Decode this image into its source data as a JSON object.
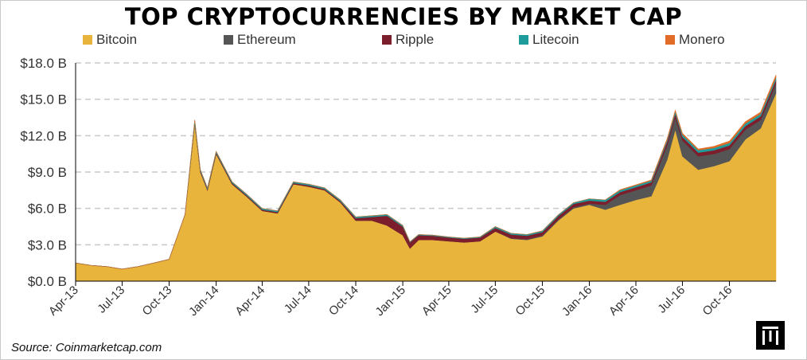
{
  "chart_data": {
    "type": "area",
    "title": "TOP CRYPTOCURRENCIES BY MARKET CAP",
    "xlabel": "",
    "ylabel": "",
    "ylim": [
      0,
      18
    ],
    "y_unit": "billion USD",
    "y_ticks": [
      "$0.0 B",
      "$3.0 B",
      "$6.0 B",
      "$9.0 B",
      "$12.0 B",
      "$15.0 B",
      "$18.0 B"
    ],
    "y_tick_values": [
      0,
      3,
      6,
      9,
      12,
      15,
      18
    ],
    "x_ticks": [
      "Apr-13",
      "Jul-13",
      "Oct-13",
      "Jan-14",
      "Apr-14",
      "Jul-14",
      "Oct-14",
      "Jan-15",
      "Apr-15",
      "Jul-15",
      "Oct-15",
      "Jan-16",
      "Apr-16",
      "Jul-16",
      "Oct-16"
    ],
    "x_tick_values": [
      "2013-04-01",
      "2013-07-01",
      "2013-10-01",
      "2014-01-01",
      "2014-04-01",
      "2014-07-01",
      "2014-10-01",
      "2015-01-01",
      "2015-04-01",
      "2015-07-01",
      "2015-10-01",
      "2016-01-01",
      "2016-04-01",
      "2016-07-01",
      "2016-10-01"
    ],
    "xlim": [
      "2013-04-01",
      "2016-12-31"
    ],
    "stacked": true,
    "grid": "horizontal dashed",
    "legend_position": "top",
    "x": [
      "2013-04-01",
      "2013-05-01",
      "2013-06-01",
      "2013-07-01",
      "2013-08-01",
      "2013-09-01",
      "2013-10-01",
      "2013-11-01",
      "2013-11-20",
      "2013-12-01",
      "2013-12-15",
      "2014-01-01",
      "2014-02-01",
      "2014-03-01",
      "2014-04-01",
      "2014-05-01",
      "2014-06-01",
      "2014-07-01",
      "2014-08-01",
      "2014-09-01",
      "2014-10-01",
      "2014-11-01",
      "2014-12-01",
      "2015-01-01",
      "2015-01-15",
      "2015-02-01",
      "2015-03-01",
      "2015-04-01",
      "2015-05-01",
      "2015-06-01",
      "2015-07-01",
      "2015-08-01",
      "2015-09-01",
      "2015-10-01",
      "2015-11-01",
      "2015-12-01",
      "2016-01-01",
      "2016-02-01",
      "2016-03-01",
      "2016-04-01",
      "2016-05-01",
      "2016-06-01",
      "2016-06-17",
      "2016-07-01",
      "2016-08-01",
      "2016-09-01",
      "2016-10-01",
      "2016-11-01",
      "2016-12-01",
      "2016-12-31"
    ],
    "series": [
      {
        "name": "Bitcoin",
        "color": "#e8b43c",
        "values": [
          1.5,
          1.3,
          1.2,
          1.0,
          1.2,
          1.5,
          1.8,
          5.5,
          13.0,
          9.0,
          7.5,
          10.5,
          8.0,
          7.0,
          5.8,
          5.6,
          8.0,
          7.8,
          7.5,
          6.5,
          5.0,
          5.0,
          4.6,
          3.8,
          2.7,
          3.4,
          3.4,
          3.3,
          3.2,
          3.3,
          4.1,
          3.5,
          3.4,
          3.7,
          5.0,
          6.0,
          6.3,
          5.9,
          6.3,
          6.7,
          7.0,
          10.0,
          12.5,
          10.3,
          9.2,
          9.5,
          9.9,
          11.7,
          12.6,
          15.5
        ]
      },
      {
        "name": "Ethereum",
        "color": "#555555",
        "values": [
          0,
          0,
          0,
          0,
          0,
          0,
          0,
          0,
          0,
          0,
          0,
          0,
          0,
          0,
          0,
          0,
          0,
          0,
          0,
          0,
          0,
          0,
          0,
          0,
          0,
          0,
          0,
          0,
          0,
          0,
          0,
          0.05,
          0.07,
          0.08,
          0.1,
          0.1,
          0.1,
          0.4,
          0.8,
          0.8,
          0.9,
          1.2,
          1.0,
          1.3,
          1.1,
          1.0,
          1.0,
          0.8,
          0.7,
          0.8
        ]
      },
      {
        "name": "Ripple",
        "color": "#7d1e2c",
        "values": [
          0,
          0,
          0,
          0,
          0,
          0,
          0,
          0,
          0.1,
          0.1,
          0.1,
          0.1,
          0.1,
          0.1,
          0.1,
          0.1,
          0.1,
          0.1,
          0.1,
          0.1,
          0.2,
          0.3,
          0.8,
          0.7,
          0.5,
          0.4,
          0.35,
          0.3,
          0.3,
          0.3,
          0.3,
          0.3,
          0.28,
          0.27,
          0.27,
          0.27,
          0.25,
          0.25,
          0.25,
          0.25,
          0.25,
          0.3,
          0.3,
          0.3,
          0.3,
          0.3,
          0.3,
          0.3,
          0.3,
          0.3
        ]
      },
      {
        "name": "Litecoin",
        "color": "#1e9c9c",
        "values": [
          0,
          0,
          0,
          0,
          0,
          0,
          0,
          0,
          0.2,
          0.1,
          0.1,
          0.1,
          0.1,
          0.1,
          0.1,
          0.1,
          0.1,
          0.1,
          0.1,
          0.1,
          0.1,
          0.1,
          0.1,
          0.1,
          0.05,
          0.05,
          0.05,
          0.05,
          0.05,
          0.05,
          0.1,
          0.1,
          0.1,
          0.1,
          0.1,
          0.1,
          0.15,
          0.15,
          0.15,
          0.15,
          0.15,
          0.15,
          0.2,
          0.2,
          0.2,
          0.2,
          0.2,
          0.2,
          0.2,
          0.2
        ]
      },
      {
        "name": "Monero",
        "color": "#e06c28",
        "values": [
          0,
          0,
          0,
          0,
          0,
          0,
          0,
          0,
          0,
          0,
          0,
          0,
          0,
          0,
          0,
          0,
          0,
          0,
          0,
          0,
          0,
          0,
          0,
          0,
          0,
          0,
          0,
          0,
          0,
          0,
          0,
          0,
          0,
          0,
          0,
          0,
          0,
          0,
          0.05,
          0.05,
          0.05,
          0.1,
          0.1,
          0.1,
          0.1,
          0.12,
          0.15,
          0.15,
          0.15,
          0.2
        ]
      }
    ],
    "annotations": []
  },
  "source": "Source: Coinmarketcap.com",
  "colors": {
    "axis": "#000000",
    "grid": "#c8c8c8",
    "text": "#333333"
  }
}
